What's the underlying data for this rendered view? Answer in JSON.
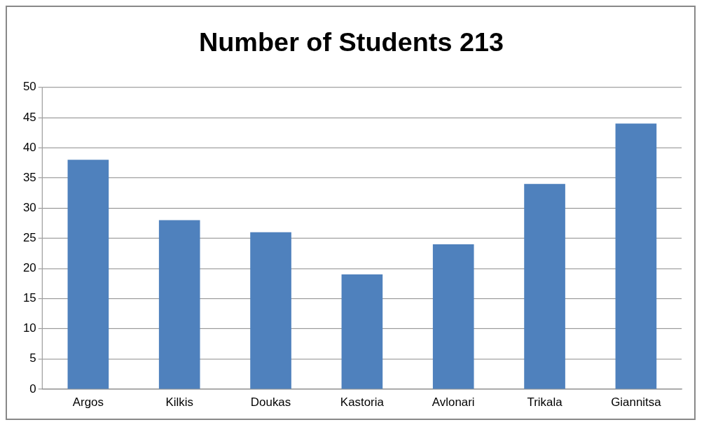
{
  "chart_data": {
    "type": "bar",
    "title": "Number of Students 213",
    "categories": [
      "Argos",
      "Kilkis",
      "Doukas",
      "Kastoria",
      "Avlonari",
      "Trikala",
      "Giannitsa"
    ],
    "values": [
      38,
      28,
      26,
      19,
      24,
      34,
      44
    ],
    "color": "#4f81bd",
    "ylim": [
      0,
      50
    ],
    "yticks": [
      0,
      5,
      10,
      15,
      20,
      25,
      30,
      35,
      40,
      45,
      50
    ],
    "grid": "y",
    "legend": false
  }
}
